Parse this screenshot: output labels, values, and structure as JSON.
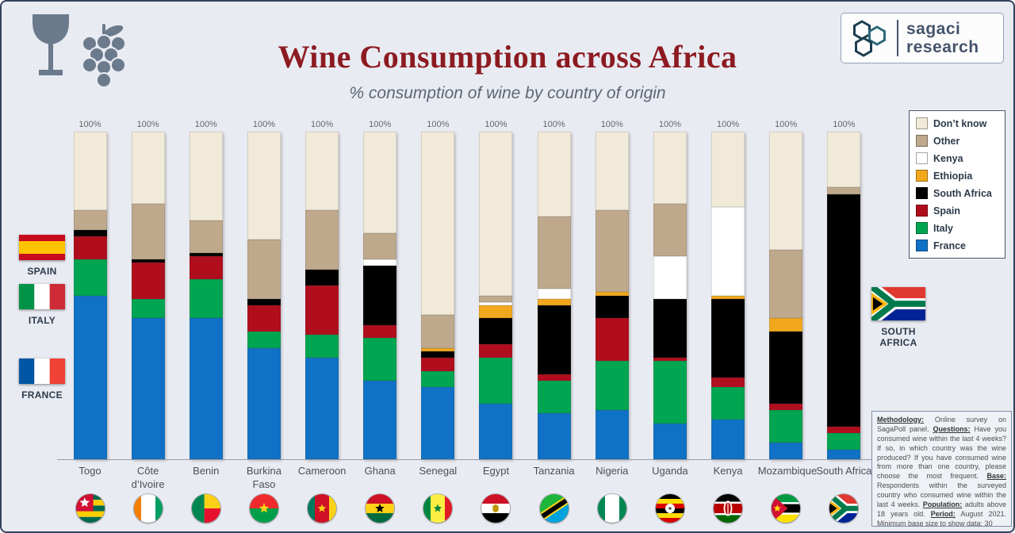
{
  "page": {
    "background": "#e9ebf2",
    "border_color": "#33415c"
  },
  "header": {
    "title": "Wine Consumption across Africa",
    "subtitle": "% consumption of wine by country of origin",
    "title_color": "#8c1b21"
  },
  "icons": {
    "header": [
      "wine-glass-icon",
      "grapes-icon"
    ],
    "logo": "sagaci-hexagons-icon"
  },
  "logo": {
    "line1": "sagaci",
    "line2": "research"
  },
  "legend": {
    "items": [
      {
        "label": "Don’t know",
        "color": "#f1ead9"
      },
      {
        "label": "Other",
        "color": "#bfa98d"
      },
      {
        "label": "Kenya",
        "color": "#ffffff"
      },
      {
        "label": "Ethiopia",
        "color": "#f2a81d"
      },
      {
        "label": "South Africa",
        "color": "#000000"
      },
      {
        "label": "Spain",
        "color": "#b00d1d"
      },
      {
        "label": "Italy",
        "color": "#00a551"
      },
      {
        "label": "France",
        "color": "#0f72c6"
      }
    ]
  },
  "side_flags": {
    "left": [
      {
        "label": "SPAIN",
        "flag": "spain"
      },
      {
        "label": "ITALY",
        "flag": "italy"
      },
      {
        "label": "FRANCE",
        "flag": "france"
      }
    ],
    "right": [
      {
        "label": "SOUTH AFRICA",
        "flag": "southafrica"
      }
    ]
  },
  "chart_data": {
    "type": "bar",
    "stacked": true,
    "unit": "%",
    "value_label": "100%",
    "ylim": [
      0,
      100
    ],
    "grid": false,
    "legend_position": "right",
    "categories": [
      "Togo",
      "Côte d’Ivoire",
      "Benin",
      "Burkina Faso",
      "Cameroon",
      "Ghana",
      "Senegal",
      "Egypt",
      "Tanzania",
      "Nigeria",
      "Uganda",
      "Kenya",
      "Mozambique",
      "South Africa"
    ],
    "category_flags": [
      "togo",
      "cotedivoire",
      "benin",
      "burkinafaso",
      "cameroon",
      "ghana",
      "senegal",
      "egypt",
      "tanzania",
      "nigeria",
      "uganda",
      "kenya",
      "mozambique",
      "southafrica"
    ],
    "series": [
      {
        "name": "France",
        "color": "#0f72c6",
        "values": [
          50,
          43,
          43,
          34,
          31,
          24,
          22,
          17,
          14,
          15,
          11,
          12,
          5,
          3
        ]
      },
      {
        "name": "Italy",
        "color": "#00a551",
        "values": [
          11,
          6,
          12,
          5,
          7,
          13,
          5,
          14,
          10,
          15,
          19,
          10,
          10,
          5
        ]
      },
      {
        "name": "Spain",
        "color": "#b00d1d",
        "values": [
          7,
          11,
          7,
          8,
          15,
          4,
          4,
          4,
          2,
          13,
          1,
          3,
          2,
          2
        ]
      },
      {
        "name": "South Africa",
        "color": "#000000",
        "values": [
          2,
          1,
          1,
          2,
          5,
          18,
          2,
          8,
          21,
          7,
          18,
          24,
          22,
          71
        ]
      },
      {
        "name": "Ethiopia",
        "color": "#f2a81d",
        "values": [
          0,
          0,
          0,
          0,
          0,
          0,
          1,
          4,
          2,
          1,
          0,
          1,
          4,
          0
        ]
      },
      {
        "name": "Kenya",
        "color": "#ffffff",
        "values": [
          0,
          0,
          0,
          0,
          0,
          2,
          0,
          1,
          3,
          0,
          13,
          27,
          0,
          0
        ]
      },
      {
        "name": "Other",
        "color": "#bfa98d",
        "values": [
          6,
          17,
          10,
          18,
          18,
          8,
          10,
          2,
          22,
          25,
          16,
          0,
          21,
          2
        ]
      },
      {
        "name": "Don’t know",
        "color": "#f1ead9",
        "values": [
          24,
          22,
          27,
          33,
          24,
          31,
          56,
          50,
          26,
          24,
          22,
          23,
          36,
          17
        ]
      }
    ]
  },
  "methodology": {
    "segments": [
      {
        "text": "Methodology:",
        "bold": true,
        "underline": true
      },
      {
        "text": " Online survey on SagaPoll panel. "
      },
      {
        "text": "Questions:",
        "bold": true,
        "underline": true
      },
      {
        "text": " Have you consumed wine within the last 4 weeks? If so, in which country was the wine produced? If you have consumed wine from more than one country, please choose the most frequent. "
      },
      {
        "text": "Base:",
        "bold": true,
        "underline": true
      },
      {
        "text": " Respondents within the surveyed country who consumed wine within the last 4 weeks. "
      },
      {
        "text": "Population:",
        "bold": true,
        "underline": true
      },
      {
        "text": " adults above 18 years old. "
      },
      {
        "text": "Period:",
        "bold": true,
        "underline": true
      },
      {
        "text": " August 2021. Minimum base size to show data: 30"
      }
    ]
  }
}
